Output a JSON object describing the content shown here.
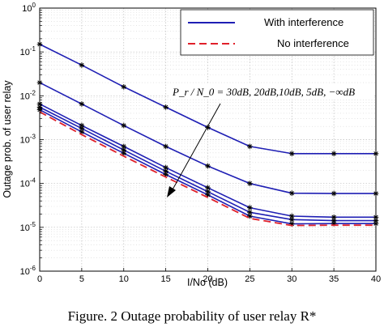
{
  "chart_data": {
    "type": "line",
    "xlabel": "I/No (dB)",
    "ylabel": "Outage prob. of user relay",
    "xlim": [
      0,
      40
    ],
    "ylim": [
      1e-06,
      1
    ],
    "yscale": "log",
    "x_ticks": [
      0,
      5,
      10,
      15,
      20,
      25,
      30,
      35,
      40
    ],
    "x_tick_labels": [
      "0",
      "5",
      "10",
      "15",
      "20",
      "25",
      "30",
      "35",
      "40"
    ],
    "y_tick_exponents": [
      0,
      -1,
      -2,
      -3,
      -4,
      -5,
      -6
    ],
    "y_tick_base": "10",
    "grid": true,
    "legend": {
      "placement": "top-right",
      "entries": [
        {
          "label": "With interference",
          "color": "#1f1fb4",
          "style": "solid"
        },
        {
          "label": "No interference",
          "color": "#e0202a",
          "style": "dashed"
        }
      ]
    },
    "annotation": "P_r / N_0 = 30dB, 20dB,10dB, 5dB, −∞dB",
    "caption": "Figure. 2 Outage probability of user relay R*",
    "series": [
      {
        "style": "solid",
        "color": "#1f1fb4",
        "marker": "*",
        "x": [
          0,
          5,
          10,
          15,
          20,
          25,
          30,
          35,
          40
        ],
        "y": [
          0.15,
          0.05,
          0.016,
          0.0055,
          0.0019,
          0.0007,
          0.00048,
          0.00048,
          0.00048
        ]
      },
      {
        "style": "solid",
        "color": "#1f1fb4",
        "marker": "*",
        "x": [
          0,
          5,
          10,
          15,
          20,
          25,
          30,
          35,
          40
        ],
        "y": [
          0.02,
          0.0065,
          0.0021,
          0.0007,
          0.00025,
          0.0001,
          6e-05,
          5.9e-05,
          5.9e-05
        ]
      },
      {
        "style": "solid",
        "color": "#1f1fb4",
        "marker": "*",
        "x": [
          0,
          5,
          10,
          15,
          20,
          25,
          30,
          35,
          40
        ],
        "y": [
          0.0065,
          0.0021,
          0.0007,
          0.00023,
          8e-05,
          2.8e-05,
          1.8e-05,
          1.7e-05,
          1.7e-05
        ]
      },
      {
        "style": "solid",
        "color": "#1f1fb4",
        "marker": "*",
        "x": [
          0,
          5,
          10,
          15,
          20,
          25,
          30,
          35,
          40
        ],
        "y": [
          0.0055,
          0.0018,
          0.00058,
          0.00019,
          6.5e-05,
          2.2e-05,
          1.5e-05,
          1.42e-05,
          1.42e-05
        ]
      },
      {
        "style": "solid",
        "color": "#1f1fb4",
        "marker": "*",
        "x": [
          0,
          5,
          10,
          15,
          20,
          25,
          30,
          35,
          40
        ],
        "y": [
          0.0048,
          0.0015,
          0.00049,
          0.00016,
          5.5e-05,
          1.8e-05,
          1.2e-05,
          1.22e-05,
          1.22e-05
        ]
      },
      {
        "style": "dashed",
        "color": "#e0202a",
        "marker": "",
        "x": [
          0,
          5,
          10,
          15,
          20,
          25,
          30,
          35,
          40
        ],
        "y": [
          0.0043,
          0.0013,
          0.00042,
          0.00014,
          4.8e-05,
          1.6e-05,
          1.1e-05,
          1.12e-05,
          1.12e-05
        ]
      }
    ]
  }
}
